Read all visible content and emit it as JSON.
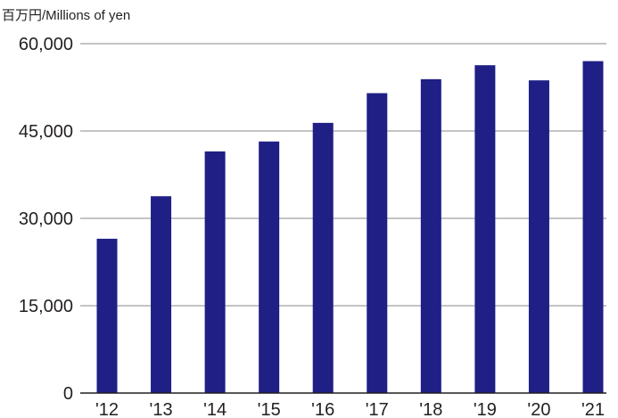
{
  "chart_data": {
    "type": "bar",
    "unit_label": "百万円/Millions of yen",
    "categories": [
      "'12",
      "'13",
      "'14",
      "'15",
      "'16",
      "'17",
      "'18",
      "'19",
      "'20",
      "'21"
    ],
    "values": [
      26500,
      33800,
      41500,
      43200,
      46400,
      51500,
      53900,
      56300,
      53700,
      57000
    ],
    "y_ticks": [
      0,
      15000,
      30000,
      45000,
      60000
    ],
    "y_tick_labels": [
      "0",
      "15,000",
      "30,000",
      "45,000",
      "60,000"
    ],
    "ylim": [
      0,
      60000
    ],
    "grid": true,
    "bar_color": "#1f1f85",
    "legend": "none"
  }
}
